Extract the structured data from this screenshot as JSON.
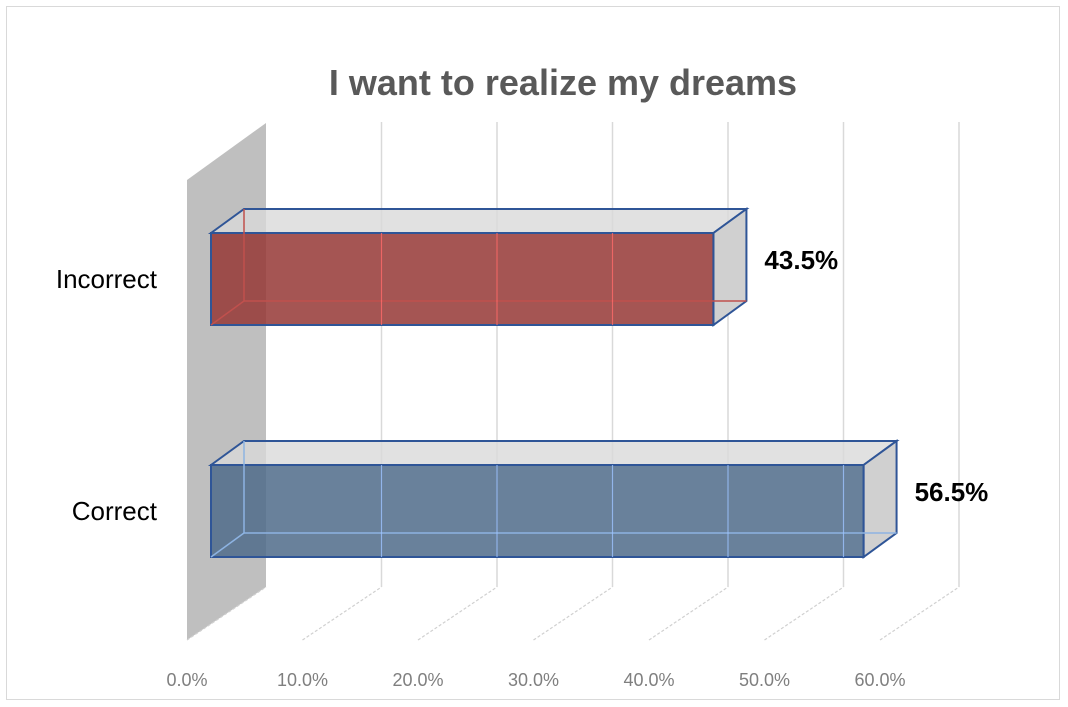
{
  "chart_data": {
    "type": "bar",
    "orientation": "horizontal",
    "style": "3d-clustered-bar",
    "title": "I want to realize my dreams",
    "xlabel": "",
    "ylabel": "",
    "categories": [
      "Incorrect",
      "Correct"
    ],
    "values": [
      43.5,
      56.5
    ],
    "data_labels": [
      "43.5%",
      "56.5%"
    ],
    "xlim": [
      0,
      60
    ],
    "x_ticks": [
      0,
      10,
      20,
      30,
      40,
      50,
      60
    ],
    "x_tick_labels": [
      "0.0%",
      "10.0%",
      "20.0%",
      "30.0%",
      "40.0%",
      "50.0%",
      "60.0%"
    ],
    "grid": true,
    "legend": "none",
    "colors": {
      "Incorrect": "#953735",
      "Correct": "#4f6b8a",
      "bar_edge": "#2f5597",
      "wall": "#bfbfbf",
      "grid": "#d9d9d9",
      "title": "#595959",
      "tick": "#7f7f7f"
    }
  }
}
